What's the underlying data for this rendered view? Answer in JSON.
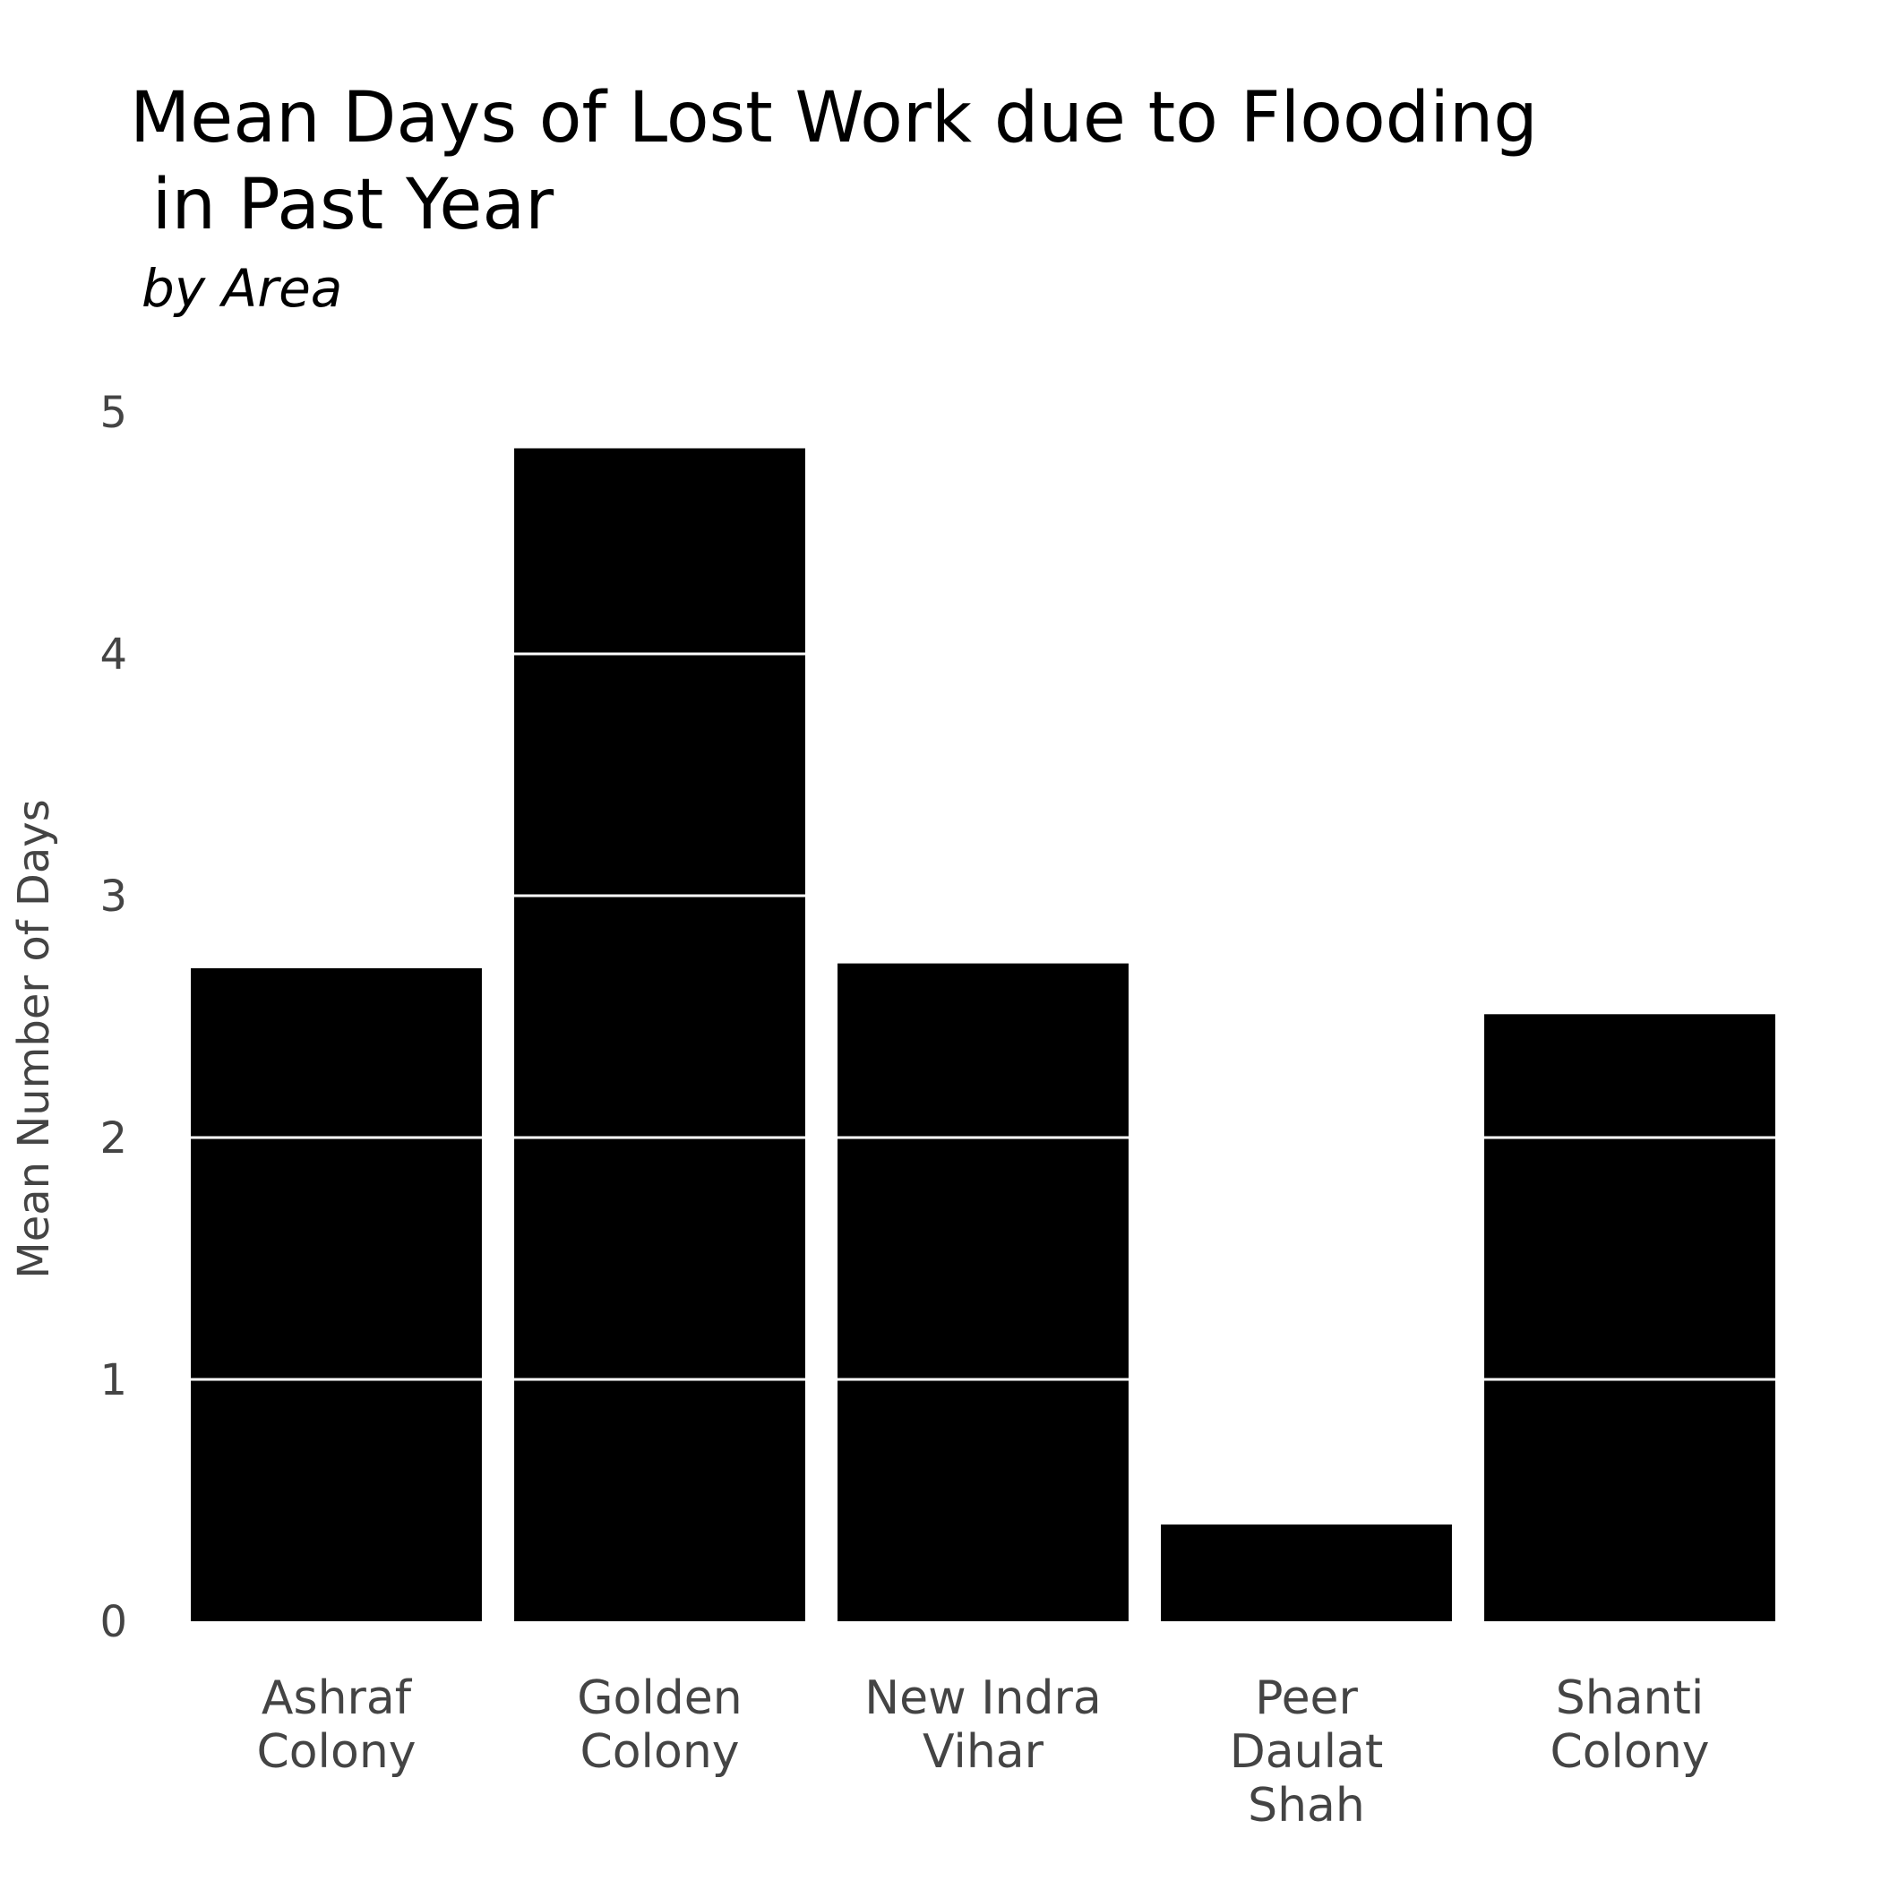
{
  "chart_data": {
    "type": "bar",
    "title_lines": [
      "Mean Days of Lost Work due to Flooding",
      " in Past Year"
    ],
    "subtitle": "by Area",
    "ylabel": "Mean Number of Days",
    "xlabel": "",
    "ylim": [
      0,
      5
    ],
    "yticks": [
      "0",
      "1",
      "2",
      "3",
      "4",
      "5"
    ],
    "categories": [
      [
        "Ashraf",
        "Colony"
      ],
      [
        "Golden",
        "Colony"
      ],
      [
        "New Indra",
        "Vihar"
      ],
      [
        "Peer",
        "Daulat",
        "Shah"
      ],
      [
        "Shanti",
        "Colony"
      ]
    ],
    "values": [
      2.7,
      4.85,
      2.72,
      0.4,
      2.51
    ],
    "grid": true,
    "legend": "none",
    "bar_color": "#000000",
    "grid_color": "#ffffff"
  }
}
